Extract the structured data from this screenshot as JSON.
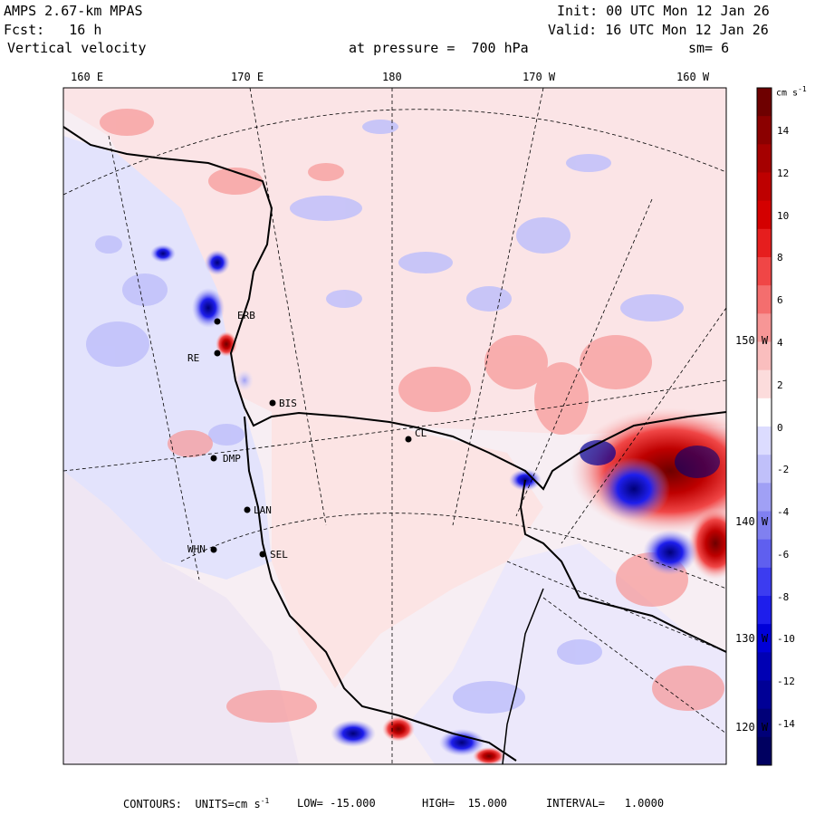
{
  "header": {
    "model": "AMPS 2.67-km MPAS",
    "forecast": "Fcst:   16 h",
    "field": "Vertical velocity",
    "init": "Init: 00 UTC Mon 12 Jan 26",
    "valid": "Valid: 16 UTC Mon 12 Jan 26",
    "level": "at pressure =  700 hPa",
    "smoothing": "sm= 6"
  },
  "lon_labels": [
    "160 E",
    "170 E",
    "180",
    "170 W",
    "160 W"
  ],
  "lat_labels": [
    "150 W",
    "140 W",
    "130 W",
    "120 W"
  ],
  "stations": [
    "ERB",
    "RE",
    "BIS",
    "CL",
    "DMP",
    "LAN",
    "WHN",
    "SEL"
  ],
  "colorbar": {
    "units": "cm s",
    "units_exp": "-1",
    "ticks": [
      "14",
      "12",
      "10",
      "8",
      "6",
      "4",
      "2",
      "0",
      "-2",
      "-4",
      "-6",
      "-8",
      "-10",
      "-12",
      "-14"
    ],
    "colors_high_to_low": [
      "#6e0000",
      "#8b0000",
      "#a50000",
      "#be0000",
      "#d40000",
      "#e61e1e",
      "#f04646",
      "#f46e6e",
      "#f79696",
      "#fabebe",
      "#fcdcdc",
      "#ffffff",
      "#dcdcff",
      "#c0c0fa",
      "#a0a0f5",
      "#8080f0",
      "#5f5fef",
      "#3c3cf0",
      "#1e1eec",
      "#0000d8",
      "#0000b4",
      "#000096",
      "#000078",
      "#000060"
    ]
  },
  "footer": {
    "contours": "CONTOURS:  UNITS=cm s",
    "contours_exp": "-1",
    "low": "LOW= -15.000",
    "high": "HIGH=  15.000",
    "interval": "INTERVAL=   1.0000"
  }
}
